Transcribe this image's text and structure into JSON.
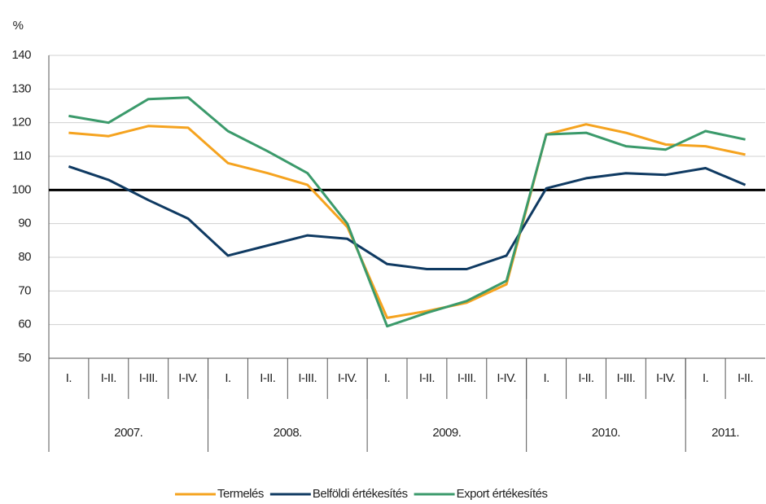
{
  "chart_data": {
    "type": "line",
    "y_label": "%",
    "categories": [
      "I.",
      "I-II.",
      "I-III.",
      "I-IV.",
      "I.",
      "I-II.",
      "I-III.",
      "I-IV.",
      "I.",
      "I-II.",
      "I-III.",
      "I-IV.",
      "I.",
      "I-II.",
      "I-III.",
      "I-IV.",
      "I.",
      "I-II."
    ],
    "groups": [
      {
        "label": "2007.",
        "span": 4
      },
      {
        "label": "2008.",
        "span": 4
      },
      {
        "label": "2009.",
        "span": 4
      },
      {
        "label": "2010.",
        "span": 4
      },
      {
        "label": "2011.",
        "span": 2
      }
    ],
    "series": [
      {
        "name": "Termelés",
        "color": "#f5a31f",
        "values": [
          117,
          116,
          119,
          118.5,
          108,
          105,
          101.5,
          89,
          62,
          64,
          66.5,
          72,
          116.5,
          119.5,
          117,
          113.5,
          113,
          110.5
        ]
      },
      {
        "name": "Belföldi értékesítés",
        "color": "#0f3a62",
        "values": [
          107,
          103,
          97,
          91.5,
          80.5,
          83.5,
          86.5,
          85.5,
          78,
          76.5,
          76.5,
          80.5,
          100.5,
          103.5,
          105,
          104.5,
          106.5,
          101.5
        ]
      },
      {
        "name": "Export értékesítés",
        "color": "#3b9a6b",
        "values": [
          122,
          120,
          127,
          127.5,
          117.5,
          111.5,
          105,
          90,
          59.5,
          63.5,
          67,
          73,
          116.5,
          117,
          113,
          112,
          117.5,
          115
        ]
      }
    ],
    "reference_line": 100,
    "ylim": [
      50,
      140
    ],
    "yticks": [
      50,
      60,
      70,
      80,
      90,
      100,
      110,
      120,
      130,
      140
    ],
    "grid": true
  }
}
